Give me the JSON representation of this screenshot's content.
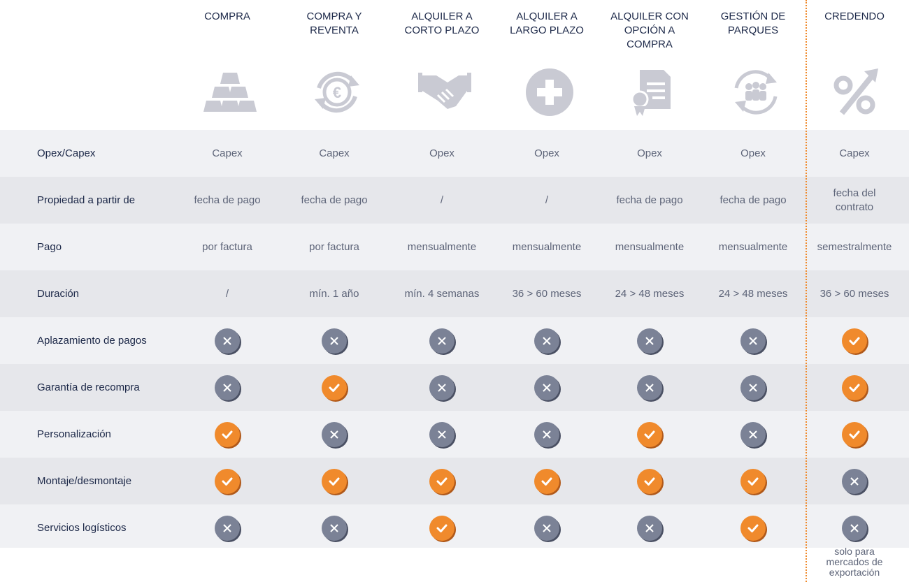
{
  "columns": [
    {
      "title": "COMPRA",
      "icon": "gold-bars-icon"
    },
    {
      "title": "COMPRA Y\nREVENTA",
      "icon": "euro-cycle-icon"
    },
    {
      "title": "ALQUILER A\nCORTO PLAZO",
      "icon": "handshake-icon"
    },
    {
      "title": "ALQUILER A\nLARGO PLAZO",
      "icon": "plus-circle-icon"
    },
    {
      "title": "ALQUILER CON\nOPCIÓN A\nCOMPRA",
      "icon": "certificate-document-icon"
    },
    {
      "title": "GESTIÓN DE\nPARQUES",
      "icon": "people-cycle-icon"
    },
    {
      "title": "CREDENDO",
      "icon": "percent-arrow-icon"
    }
  ],
  "rows": [
    {
      "label": "Opex/Capex",
      "cells": [
        "Capex",
        "Capex",
        "Opex",
        "Opex",
        "Opex",
        "Opex",
        "Capex"
      ]
    },
    {
      "label": "Propiedad a partir de",
      "cells": [
        "fecha de pago",
        "fecha de pago",
        "/",
        "/",
        "fecha de pago",
        "fecha de pago",
        "fecha del\ncontrato"
      ]
    },
    {
      "label": "Pago",
      "cells": [
        "por factura",
        "por factura",
        "mensualmente",
        "mensualmente",
        "mensualmente",
        "mensualmente",
        "semestralmente"
      ]
    },
    {
      "label": "Duración",
      "cells": [
        "/",
        "mín. 1 año",
        "mín. 4 semanas",
        "36 > 60 meses",
        "24 > 48 meses",
        "24 > 48 meses",
        "36 > 60 meses"
      ]
    },
    {
      "label": "Aplazamiento de pagos",
      "checks": [
        false,
        false,
        false,
        false,
        false,
        false,
        true
      ]
    },
    {
      "label": "Garantía de recompra",
      "checks": [
        false,
        true,
        false,
        false,
        false,
        false,
        true
      ]
    },
    {
      "label": "Personalización",
      "checks": [
        true,
        false,
        false,
        false,
        true,
        false,
        true
      ]
    },
    {
      "label": "Montaje/desmontaje",
      "checks": [
        true,
        true,
        true,
        true,
        true,
        true,
        false
      ]
    },
    {
      "label": "Servicios logísticos",
      "checks": [
        false,
        false,
        true,
        false,
        false,
        true,
        false
      ]
    }
  ],
  "footnote": "solo para\nmercados de\nexportación",
  "colors": {
    "accent": "#f08a2c",
    "negative": "#7b8296",
    "text": "#1e2a4a",
    "icon": "#c9cad3"
  }
}
